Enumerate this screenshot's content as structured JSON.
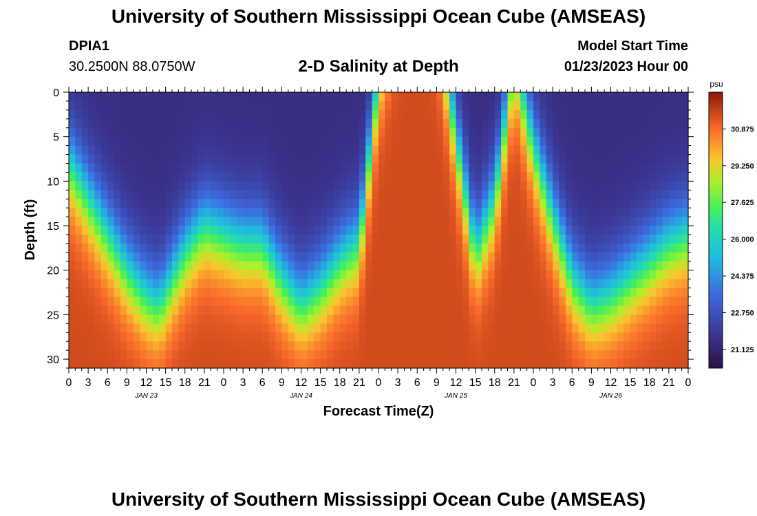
{
  "header": {
    "title": "University of Southern Mississippi Ocean Cube (AMSEAS)",
    "station_id": "DPIA1",
    "coordinates": "30.2500N  88.0750W",
    "chart_title": "2-D Salinity at Depth",
    "model_label": "Model Start Time",
    "model_time": "01/23/2023 Hour 00"
  },
  "footer": {
    "title": "University of Southern Mississippi Ocean Cube (AMSEAS)"
  },
  "chart_data": {
    "type": "heatmap",
    "title": "2-D Salinity at Depth",
    "xlabel": "Forecast Time(Z)",
    "ylabel": "Depth (ft)",
    "x_tick_labels": [
      "0",
      "3",
      "6",
      "9",
      "12",
      "15",
      "18",
      "21",
      "0",
      "3",
      "6",
      "9",
      "12",
      "15",
      "18",
      "21",
      "0",
      "3",
      "6",
      "9",
      "12",
      "15",
      "18",
      "21",
      "0",
      "3",
      "6",
      "9",
      "12",
      "15",
      "18",
      "21",
      "0"
    ],
    "day_labels": [
      "JAN 23",
      "JAN 24",
      "JAN 25",
      "JAN 26"
    ],
    "y_ticks": [
      0,
      5,
      10,
      15,
      20,
      25,
      30
    ],
    "ylim": [
      0,
      31
    ],
    "x_hours_range": [
      0,
      96
    ],
    "colorbar": {
      "unit": "psu",
      "range": [
        20.3,
        32.5
      ],
      "tick_labels": [
        "30.875",
        "29.250",
        "27.625",
        "26.000",
        "24.375",
        "22.750",
        "21.125"
      ],
      "tick_values": [
        30.875,
        29.25,
        27.625,
        26.0,
        24.375,
        22.75,
        21.125
      ]
    },
    "surface_salinity_psu": 21.5,
    "deep_salinity_psu": 31.5,
    "halocline_depth_ft": {
      "hours": [
        0,
        3,
        6,
        9,
        12,
        14,
        18,
        21,
        24,
        27,
        30,
        33,
        36,
        39,
        42,
        45,
        48,
        51,
        54,
        57,
        60,
        63,
        66,
        69,
        72,
        75,
        78,
        81,
        84,
        87,
        90,
        93,
        96
      ],
      "depth": [
        8,
        12,
        16,
        20,
        23,
        24,
        18,
        15,
        16,
        17,
        17,
        21,
        24,
        22,
        19,
        17,
        -2,
        -12,
        -20,
        -10,
        5,
        18,
        12,
        -4,
        6,
        14,
        21,
        24,
        23,
        21,
        19,
        17,
        16
      ]
    }
  }
}
